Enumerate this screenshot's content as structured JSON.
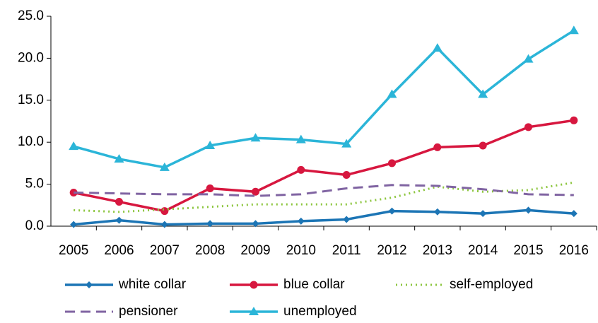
{
  "chart_data": {
    "type": "line",
    "categories": [
      "2005",
      "2006",
      "2007",
      "2008",
      "2009",
      "2010",
      "2011",
      "2012",
      "2013",
      "2014",
      "2015",
      "2016"
    ],
    "ylim": [
      0,
      25
    ],
    "yticks": [
      {
        "value": 0,
        "label": "0.0"
      },
      {
        "value": 5,
        "label": "5.0"
      },
      {
        "value": 10,
        "label": "10.0"
      },
      {
        "value": 15,
        "label": "15.0"
      },
      {
        "value": 20,
        "label": "20.0"
      },
      {
        "value": 25,
        "label": "25.0"
      }
    ],
    "grid": false,
    "series": [
      {
        "name": "white collar",
        "color": "#1c75b5",
        "marker": "diamond",
        "dash": "solid",
        "values": [
          0.2,
          0.7,
          0.2,
          0.3,
          0.3,
          0.6,
          0.8,
          1.8,
          1.7,
          1.5,
          1.9,
          1.5
        ]
      },
      {
        "name": "blue collar",
        "color": "#d7173f",
        "marker": "circle",
        "dash": "solid",
        "values": [
          4.0,
          2.9,
          1.8,
          4.5,
          4.1,
          6.7,
          6.1,
          7.5,
          9.4,
          9.6,
          11.8,
          12.6
        ]
      },
      {
        "name": "self-employed",
        "color": "#8dc63f",
        "marker": "none",
        "dash": "dotted",
        "values": [
          1.9,
          1.7,
          2.0,
          2.3,
          2.6,
          2.6,
          2.6,
          3.4,
          4.7,
          4.1,
          4.3,
          5.2
        ]
      },
      {
        "name": "pensioner",
        "color": "#8064a2",
        "marker": "none",
        "dash": "dashed",
        "values": [
          4.0,
          3.9,
          3.8,
          3.8,
          3.6,
          3.8,
          4.5,
          4.9,
          4.8,
          4.4,
          3.8,
          3.7
        ]
      },
      {
        "name": "unemployed",
        "color": "#2bb5d8",
        "marker": "triangle",
        "dash": "solid",
        "values": [
          9.5,
          8.0,
          7.0,
          9.6,
          10.5,
          10.3,
          9.8,
          15.7,
          21.2,
          15.7,
          19.9,
          23.3
        ]
      }
    ]
  }
}
